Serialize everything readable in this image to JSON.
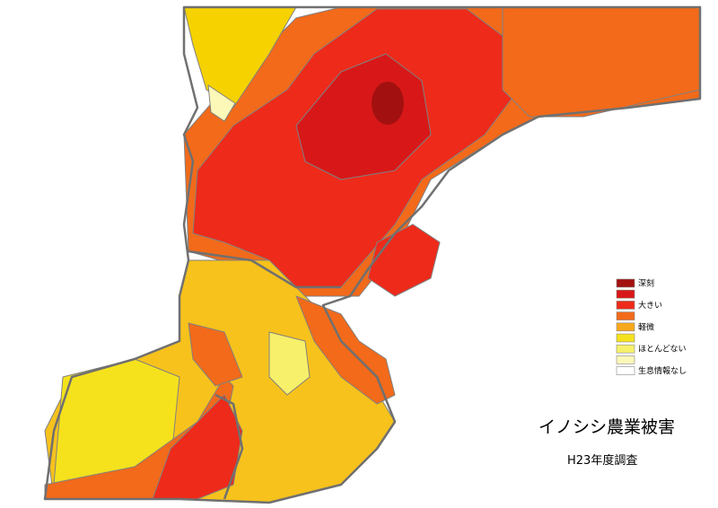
{
  "title": "イノシシ農業被害",
  "subtitle": "H23年度調査",
  "legend": [
    {
      "color": "#a31010",
      "label": "深刻"
    },
    {
      "color": "#d81818"
    },
    {
      "color": "#ee2a1a",
      "label": "大きい"
    },
    {
      "color": "#f26a1a"
    },
    {
      "color": "#f7a81c",
      "label": "軽微"
    },
    {
      "color": "#f5e21c"
    },
    {
      "color": "#f7f06a",
      "label": "ほとんどない"
    },
    {
      "color": "#fbf8b8"
    },
    {
      "color": "#ffffff",
      "label": "生息情報なし"
    }
  ]
}
